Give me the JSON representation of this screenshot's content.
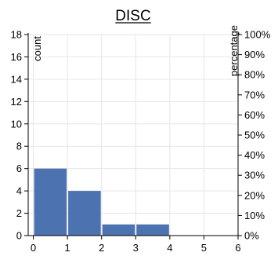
{
  "chart_data": {
    "type": "bar",
    "title": "DISC",
    "ylabel": "count",
    "y2label": "percentage",
    "xlabel": "",
    "bins": [
      {
        "x0": 0.0,
        "x1": 1.0,
        "value": 6
      },
      {
        "x0": 1.0,
        "x1": 2.0,
        "value": 4
      },
      {
        "x0": 2.0,
        "x1": 3.0,
        "value": 1
      },
      {
        "x0": 3.0,
        "x1": 4.0,
        "value": 1
      }
    ],
    "xlim": [
      -0.15,
      6.0
    ],
    "ylim": [
      0,
      18
    ],
    "x_ticks": [
      0,
      1,
      2,
      3,
      4,
      5,
      6
    ],
    "x_tick_labels": [
      "0",
      "1",
      "2",
      "3",
      "4",
      "5",
      "6"
    ],
    "y_ticks": [
      0,
      2,
      4,
      6,
      8,
      10,
      12,
      14,
      16,
      18
    ],
    "y_tick_labels": [
      "0",
      "2",
      "4",
      "6",
      "8",
      "10",
      "12",
      "14",
      "16",
      "18"
    ],
    "y2_ticks_fraction": [
      0,
      0.1,
      0.2,
      0.3,
      0.4,
      0.5,
      0.6,
      0.7,
      0.8,
      0.9,
      1.0
    ],
    "y2_tick_labels": [
      "0%",
      "10%",
      "20%",
      "30%",
      "40%",
      "50%",
      "60%",
      "70%",
      "80%",
      "90%",
      "100%"
    ],
    "grid": true,
    "bar_color": "#4c72b0",
    "grid_color": "#e6e6e6",
    "axis_color": "#000000"
  }
}
